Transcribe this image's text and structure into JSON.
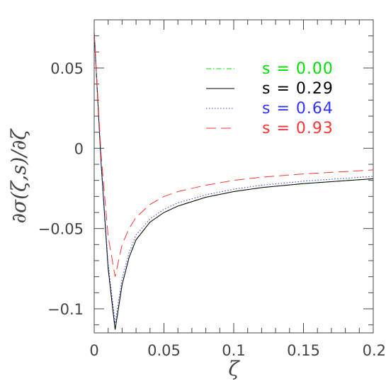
{
  "chart_data": {
    "type": "line",
    "title": "",
    "xlabel": "ζ",
    "ylabel": "∂σ(ζ,s)/∂ζ",
    "xlim": [
      0,
      0.2
    ],
    "ylim": [
      -0.115,
      0.08
    ],
    "x_ticks": [
      {
        "value": 0,
        "label": "0"
      },
      {
        "value": 0.05,
        "label": "0.05"
      },
      {
        "value": 0.1,
        "label": "0.1"
      },
      {
        "value": 0.15,
        "label": "0.15"
      },
      {
        "value": 0.2,
        "label": "0.2"
      }
    ],
    "y_ticks": [
      {
        "value": 0.05,
        "label": "0.05"
      },
      {
        "value": 0,
        "label": "0"
      },
      {
        "value": -0.05,
        "label": "−0.05"
      },
      {
        "value": -0.1,
        "label": "−0.1"
      }
    ],
    "x_minor_step": 0.01,
    "y_minor_step": 0.01,
    "grid": false,
    "legend_position": "top-right",
    "series": [
      {
        "name": "s = 0.00",
        "color": "#00dd00",
        "dash": "dash-dot",
        "x": [
          0,
          0.005,
          0.01,
          0.015,
          0.02,
          0.025,
          0.03,
          0.04,
          0.05,
          0.06,
          0.08,
          0.1,
          0.12,
          0.15,
          0.2
        ],
        "y": [
          0.072,
          -0.01,
          -0.075,
          -0.113,
          -0.085,
          -0.068,
          -0.057,
          -0.046,
          -0.04,
          -0.036,
          -0.0305,
          -0.027,
          -0.0245,
          -0.022,
          -0.019
        ]
      },
      {
        "name": "s = 0.29",
        "color": "#000000",
        "dash": "solid",
        "x": [
          0,
          0.005,
          0.01,
          0.015,
          0.02,
          0.025,
          0.03,
          0.04,
          0.05,
          0.06,
          0.08,
          0.1,
          0.12,
          0.15,
          0.2
        ],
        "y": [
          0.072,
          -0.01,
          -0.075,
          -0.113,
          -0.085,
          -0.068,
          -0.057,
          -0.046,
          -0.04,
          -0.036,
          -0.0305,
          -0.027,
          -0.0245,
          -0.022,
          -0.019
        ]
      },
      {
        "name": "s = 0.64",
        "color": "#3333ff",
        "dash": "dotted",
        "x": [
          0,
          0.005,
          0.01,
          0.015,
          0.02,
          0.025,
          0.03,
          0.04,
          0.05,
          0.06,
          0.08,
          0.1,
          0.12,
          0.15,
          0.2
        ],
        "y": [
          0.072,
          -0.009,
          -0.072,
          -0.109,
          -0.081,
          -0.065,
          -0.054,
          -0.044,
          -0.038,
          -0.034,
          -0.029,
          -0.0255,
          -0.023,
          -0.0205,
          -0.0175
        ]
      },
      {
        "name": "s = 0.93",
        "color": "#ff3333",
        "dash": "dashed",
        "x": [
          0,
          0.005,
          0.01,
          0.015,
          0.02,
          0.025,
          0.03,
          0.04,
          0.05,
          0.06,
          0.08,
          0.1,
          0.12,
          0.15,
          0.2
        ],
        "y": [
          0.072,
          -0.005,
          -0.055,
          -0.08,
          -0.06,
          -0.05,
          -0.043,
          -0.035,
          -0.03,
          -0.027,
          -0.023,
          -0.02,
          -0.018,
          -0.016,
          -0.0135
        ]
      }
    ]
  }
}
